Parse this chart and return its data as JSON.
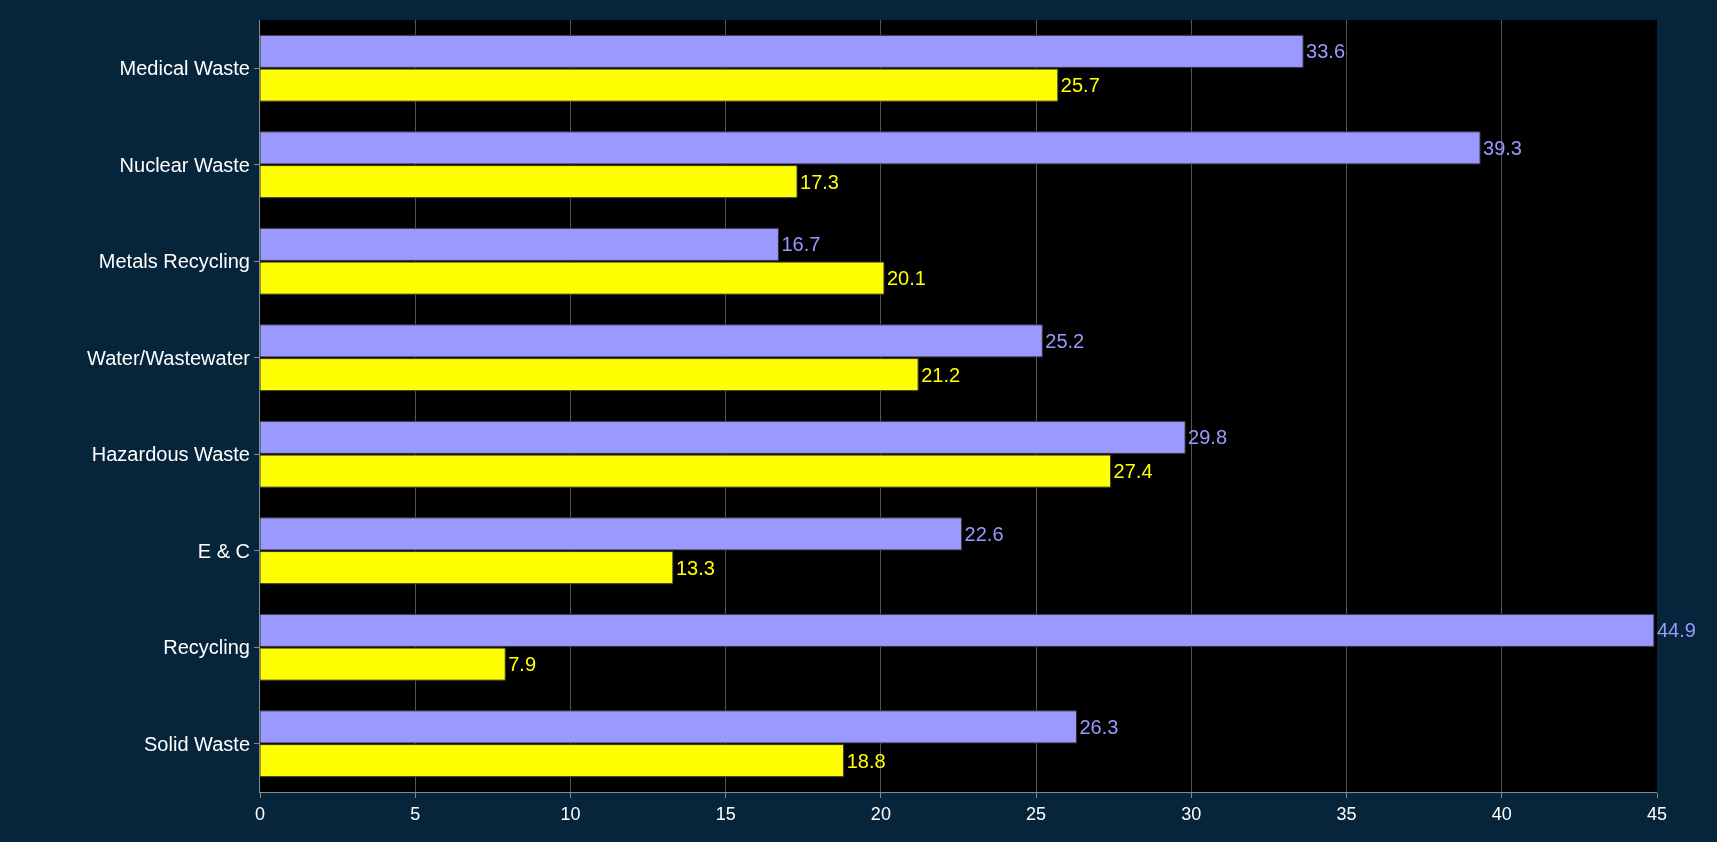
{
  "chart_data": {
    "type": "bar",
    "orientation": "horizontal",
    "categories": [
      "Medical Waste",
      "Nuclear Waste",
      "Metals Recycling",
      "Water/Wastewater",
      "Hazardous Waste",
      "E & C",
      "Recycling",
      "Solid Waste"
    ],
    "series": [
      {
        "color": "#9999ff",
        "values": [
          33.6,
          39.3,
          16.7,
          25.2,
          29.8,
          22.6,
          44.9,
          26.3
        ]
      },
      {
        "color": "#ffff00",
        "values": [
          25.7,
          17.3,
          20.1,
          21.2,
          27.4,
          13.3,
          7.9,
          18.8
        ]
      }
    ],
    "xlim": [
      0,
      45
    ],
    "xticks": [
      0,
      5,
      10,
      15,
      20,
      25,
      30,
      35,
      40,
      45
    ],
    "grid": "x",
    "data_labels": true
  }
}
